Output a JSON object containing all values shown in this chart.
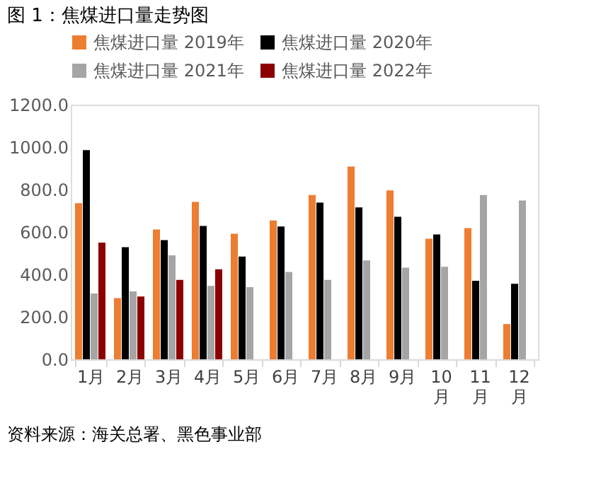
{
  "chart_data": {
    "type": "bar",
    "title": "图 1：焦煤进口量走势图",
    "categories": [
      "1月",
      "2月",
      "3月",
      "4月",
      "5月",
      "6月",
      "7月",
      "8月",
      "9月",
      "10月",
      "11月",
      "12月"
    ],
    "series": [
      {
        "name": "焦煤进口量 2019年",
        "color": "#ed7d31",
        "values": [
          736,
          288,
          612,
          742,
          592,
          654,
          774,
          908,
          796,
          568,
          618,
          166
        ]
      },
      {
        "name": "焦煤进口量 2020年",
        "color": "#000000",
        "values": [
          986,
          528,
          562,
          628,
          484,
          626,
          738,
          716,
          672,
          588,
          370,
          356
        ]
      },
      {
        "name": "焦煤进口量 2021年",
        "color": "#a5a5a5",
        "values": [
          310,
          320,
          490,
          346,
          340,
          412,
          374,
          466,
          432,
          436,
          774,
          748
        ]
      },
      {
        "name": "焦煤进口量 2022年",
        "color": "#8b0000",
        "values": [
          550,
          296,
          374,
          424,
          null,
          null,
          null,
          null,
          null,
          null,
          null,
          null
        ]
      }
    ],
    "ylim": [
      0,
      1200
    ],
    "yticks": [
      {
        "value": 0,
        "label": "0.0"
      },
      {
        "value": 200,
        "label": "200.0"
      },
      {
        "value": 400,
        "label": "400.0"
      },
      {
        "value": 600,
        "label": "600.0"
      },
      {
        "value": 800,
        "label": "800.0"
      },
      {
        "value": 1000,
        "label": "1000.0"
      },
      {
        "value": 1200,
        "label": "1200.0"
      }
    ],
    "grid": false,
    "legend": "top",
    "annotations": [
      "资料来源：海关总署、黑色事业部"
    ]
  }
}
